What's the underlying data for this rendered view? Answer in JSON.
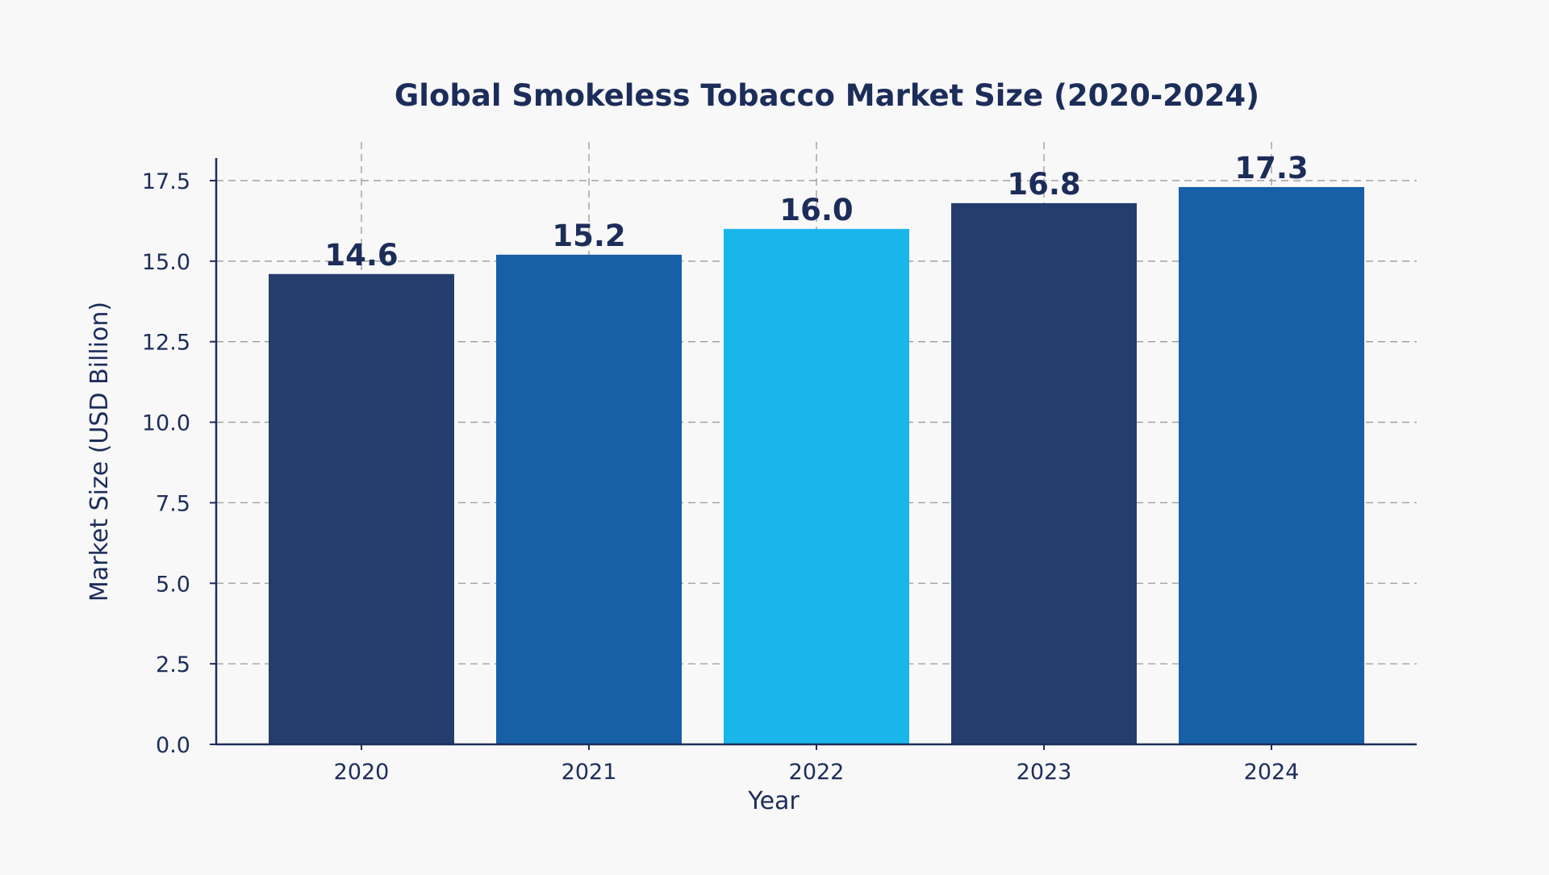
{
  "colors": {
    "background": "#f8f8f8",
    "text": "#1c2d5a",
    "axis": "#1c2d5a",
    "grid": "#9a9a9a"
  },
  "chart_data": {
    "type": "bar",
    "title": "Global Smokeless Tobacco Market Size (2020-2024)",
    "xlabel": "Year",
    "ylabel": "Market Size (USD Billion)",
    "categories": [
      "2020",
      "2021",
      "2022",
      "2023",
      "2024"
    ],
    "values": [
      14.6,
      15.2,
      16.0,
      16.8,
      17.3
    ],
    "value_labels": [
      "14.6",
      "15.2",
      "16.0",
      "16.8",
      "17.3"
    ],
    "bar_colors": [
      "#243d6d",
      "#175fa6",
      "#19b6ea",
      "#243d6d",
      "#175fa6"
    ],
    "ylim": [
      0,
      18.2
    ],
    "yticks": [
      0,
      2.5,
      5,
      7.5,
      10,
      12.5,
      15,
      17.5
    ],
    "ytick_labels": [
      "0.0",
      "2.5",
      "5.0",
      "7.5",
      "10.0",
      "12.5",
      "15.0",
      "17.5"
    ],
    "grid": true,
    "grid_style": "dashed"
  }
}
